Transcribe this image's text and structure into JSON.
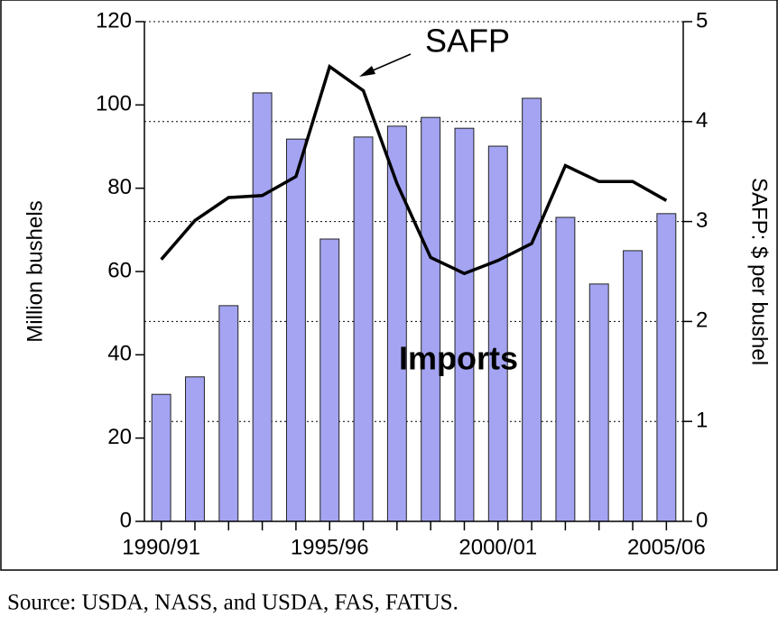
{
  "chart_data": {
    "type": "bar_line",
    "categories": [
      "1990/91",
      null,
      null,
      null,
      null,
      "1995/96",
      null,
      null,
      null,
      null,
      "2000/01",
      null,
      null,
      null,
      null,
      "2005/06"
    ],
    "series": [
      {
        "name": "Imports",
        "type": "bar",
        "color": "#a4a4f2",
        "axis": "y",
        "values": [
          30.5,
          34.7,
          51.8,
          102.9,
          91.8,
          67.8,
          92.3,
          94.9,
          97,
          94.4,
          90.1,
          101.6,
          73,
          57,
          65,
          73.9
        ]
      },
      {
        "name": "SAFP",
        "type": "line",
        "color": "#000000",
        "axis": "y2",
        "values": [
          2.62,
          3.01,
          3.24,
          3.26,
          3.45,
          4.55,
          4.31,
          3.38,
          2.64,
          2.48,
          2.61,
          2.78,
          3.56,
          3.4,
          3.4,
          3.21
        ]
      }
    ],
    "ylabel": "Million bushels",
    "y2label": "SAFP: $ per bushel",
    "ylim": [
      0,
      120
    ],
    "yticks": [
      0,
      20,
      40,
      60,
      80,
      100,
      120
    ],
    "y2lim": [
      0,
      5
    ],
    "y2ticks": [
      0,
      1,
      2,
      3,
      4,
      5
    ],
    "grid": true,
    "source": "Source: USDA, NASS, and USDA, FAS, FATUS."
  }
}
